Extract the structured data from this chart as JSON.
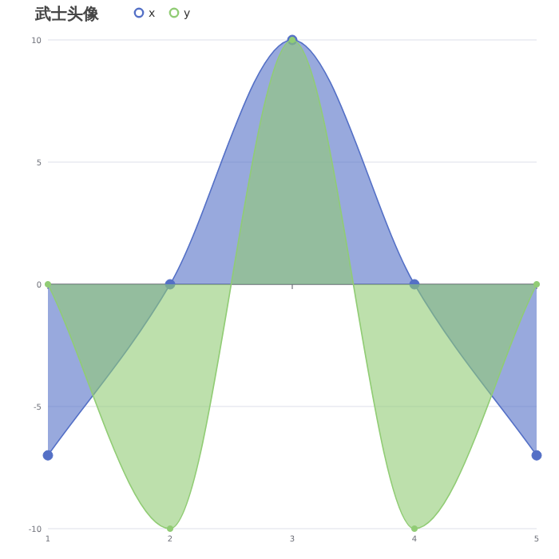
{
  "chart_data": {
    "type": "area",
    "title": "武士头像",
    "categories": [
      "1",
      "2",
      "3",
      "4",
      "5"
    ],
    "series": [
      {
        "name": "x",
        "color": "#5470c6",
        "values": [
          -7,
          0,
          10,
          0,
          -7
        ]
      },
      {
        "name": "y",
        "color": "#91cc75",
        "values": [
          0,
          -10,
          10,
          -10,
          0
        ]
      }
    ],
    "ylim": [
      -10,
      10
    ],
    "yticks": [
      -10,
      -5,
      0,
      5,
      10
    ],
    "grid": "y",
    "legend": "top left",
    "marker": "circle"
  }
}
